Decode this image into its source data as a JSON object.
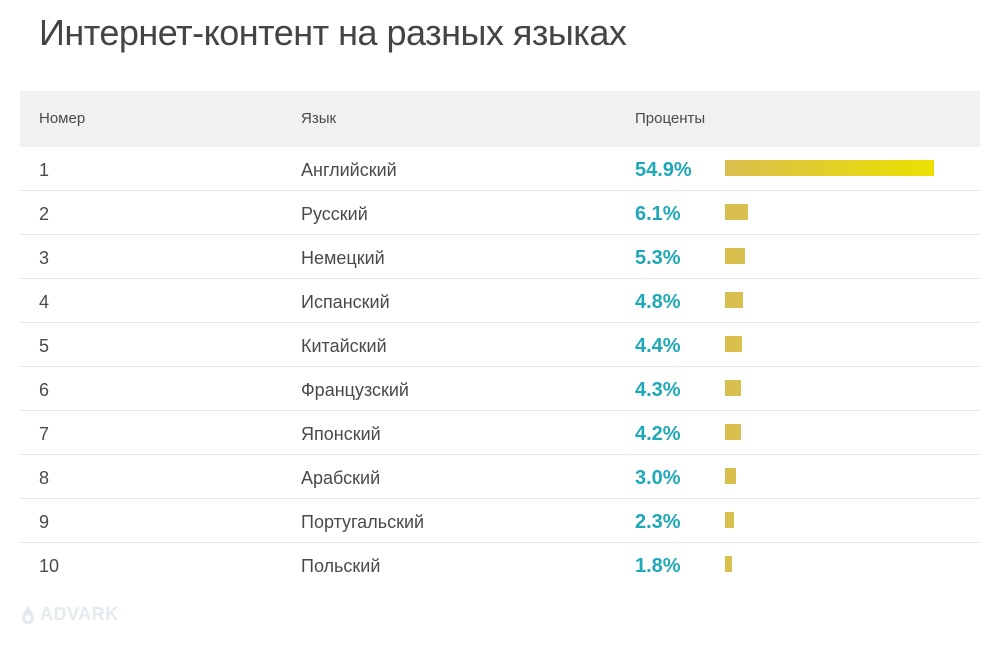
{
  "title": "Интернет-контент на разных языках",
  "table": {
    "headers": {
      "number": "Номер",
      "language": "Язык",
      "percent": "Проценты"
    },
    "rows": [
      {
        "number": "1",
        "language": "Английский",
        "percent_label": "54.9%"
      },
      {
        "number": "2",
        "language": "Русский",
        "percent_label": "6.1%"
      },
      {
        "number": "3",
        "language": "Немецкий",
        "percent_label": "5.3%"
      },
      {
        "number": "4",
        "language": "Испанский",
        "percent_label": "4.8%"
      },
      {
        "number": "5",
        "language": "Китайский",
        "percent_label": "4.4%"
      },
      {
        "number": "6",
        "language": "Французский",
        "percent_label": "4.3%"
      },
      {
        "number": "7",
        "language": "Японский",
        "percent_label": "4.2%"
      },
      {
        "number": "8",
        "language": "Арабский",
        "percent_label": "3.0%"
      },
      {
        "number": "9",
        "language": "Португальский",
        "percent_label": "2.3%"
      },
      {
        "number": "10",
        "language": "Польский",
        "percent_label": "1.8%"
      }
    ]
  },
  "chart_data": {
    "type": "bar",
    "title": "Интернет-контент на разных языках",
    "xlabel": "",
    "ylabel": "",
    "categories": [
      "Английский",
      "Русский",
      "Немецкий",
      "Испанский",
      "Китайский",
      "Французский",
      "Японский",
      "Арабский",
      "Португальский",
      "Польский"
    ],
    "values": [
      54.9,
      6.1,
      5.3,
      4.8,
      4.4,
      4.3,
      4.2,
      3.0,
      2.3,
      1.8
    ],
    "orientation": "horizontal",
    "grid": false
  },
  "colors": {
    "percent_text": "#1fa8b8",
    "bar": "#d9bf4e",
    "bar_highlight": "#ece000",
    "header_bg": "#f1f1ef"
  },
  "watermark": {
    "text": "ADVARK",
    "icon": "drop-logo-icon"
  }
}
